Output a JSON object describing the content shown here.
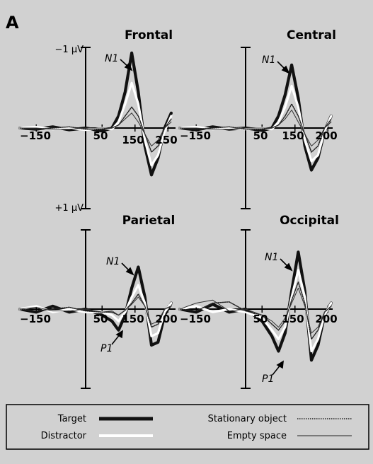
{
  "panel_letter": "A",
  "voltage_labels": {
    "top": "−1 μV",
    "bottom": "+1 μV"
  },
  "x_tick_labels": [
    "−150",
    "50",
    "150",
    "250"
  ],
  "x_tick_labels_alt": [
    "−150",
    "50",
    "150",
    "200"
  ],
  "annotations": {
    "n1": "N1",
    "p1": "P1"
  },
  "legend": {
    "target": "Target",
    "distractor": "Distractor",
    "stationary": "Stationary object",
    "empty": "Empty space"
  },
  "colors": {
    "background": "#d1d1d1",
    "target": "#111111",
    "distractor": "#ffffff"
  },
  "chart_data": [
    {
      "type": "line",
      "title": "Frontal",
      "xlabel": "",
      "ylabel": "",
      "x_ticks": [
        "−150",
        "50",
        "150",
        "250"
      ],
      "series": [
        {
          "name": "Target",
          "x": [
            -200,
            -150,
            -100,
            -50,
            0,
            50,
            80,
            100,
            120,
            140,
            160,
            180,
            200,
            220,
            240,
            260
          ],
          "values": [
            0,
            0.02,
            -0.02,
            0.03,
            0,
            0.05,
            0,
            -0.2,
            -0.6,
            -1.25,
            -0.6,
            0.3,
            0.78,
            0.5,
            0,
            -0.25
          ]
        },
        {
          "name": "Distractor",
          "x": [
            -200,
            -150,
            -100,
            -50,
            0,
            50,
            80,
            100,
            120,
            140,
            160,
            180,
            200,
            220,
            240,
            260
          ],
          "values": [
            0,
            -0.02,
            0.02,
            0,
            0.03,
            0,
            0.02,
            -0.1,
            -0.4,
            -0.75,
            -0.4,
            0.2,
            0.62,
            0.45,
            0.05,
            -0.2
          ]
        },
        {
          "name": "Stationary object",
          "x": [
            -200,
            -150,
            -100,
            -50,
            0,
            50,
            80,
            100,
            120,
            140,
            160,
            180,
            200,
            220,
            240,
            260
          ],
          "values": [
            0,
            0.02,
            0,
            -0.02,
            0.02,
            0.02,
            0,
            -0.05,
            -0.2,
            -0.35,
            -0.2,
            0.1,
            0.4,
            0.3,
            0,
            -0.15
          ]
        },
        {
          "name": "Empty space",
          "x": [
            -200,
            -150,
            -100,
            -50,
            0,
            50,
            80,
            100,
            120,
            140,
            160,
            180,
            200,
            220,
            240,
            260
          ],
          "values": [
            0,
            0,
            0.02,
            0.02,
            0,
            0,
            0,
            -0.05,
            -0.15,
            -0.25,
            -0.1,
            0.1,
            0.3,
            0.2,
            0,
            -0.1
          ]
        }
      ]
    },
    {
      "type": "line",
      "title": "Central",
      "xlabel": "",
      "ylabel": "",
      "x_ticks": [
        "−150",
        "50",
        "150",
        "200"
      ],
      "series": [
        {
          "name": "Target",
          "x": [
            -200,
            -150,
            -100,
            -50,
            0,
            50,
            80,
            100,
            120,
            140,
            160,
            180,
            200,
            220,
            240,
            260
          ],
          "values": [
            0,
            0.03,
            -0.02,
            0.02,
            0,
            0.04,
            0,
            -0.2,
            -0.55,
            -1.05,
            -0.5,
            0.3,
            0.7,
            0.5,
            0.05,
            -0.2
          ]
        },
        {
          "name": "Distractor",
          "x": [
            -200,
            -150,
            -100,
            -50,
            0,
            50,
            80,
            100,
            120,
            140,
            160,
            180,
            200,
            220,
            240,
            260
          ],
          "values": [
            0,
            -0.02,
            0.02,
            0,
            0.02,
            0,
            0.02,
            -0.1,
            -0.35,
            -0.7,
            -0.35,
            0.2,
            0.55,
            0.45,
            0.05,
            -0.2
          ]
        },
        {
          "name": "Stationary object",
          "x": [
            -200,
            -150,
            -100,
            -50,
            0,
            50,
            80,
            100,
            120,
            140,
            160,
            180,
            200,
            220,
            240,
            260
          ],
          "values": [
            0,
            0.02,
            0,
            -0.02,
            0.02,
            0.02,
            0,
            -0.05,
            -0.2,
            -0.4,
            -0.2,
            0.1,
            0.4,
            0.3,
            0,
            -0.15
          ]
        },
        {
          "name": "Empty space",
          "x": [
            -200,
            -150,
            -100,
            -50,
            0,
            50,
            80,
            100,
            120,
            140,
            160,
            180,
            200,
            220,
            240,
            260
          ],
          "values": [
            0,
            0,
            0.02,
            0.02,
            0,
            0,
            0,
            -0.05,
            -0.15,
            -0.3,
            -0.1,
            0.1,
            0.3,
            0.2,
            0,
            -0.1
          ]
        }
      ]
    },
    {
      "type": "line",
      "title": "Parietal",
      "xlabel": "",
      "ylabel": "",
      "x_ticks": [
        "−150",
        "50",
        "150",
        "200"
      ],
      "series": [
        {
          "name": "Target",
          "x": [
            -200,
            -150,
            -100,
            -50,
            0,
            50,
            80,
            100,
            120,
            140,
            160,
            180,
            200,
            220,
            240,
            260
          ],
          "values": [
            0,
            0.05,
            -0.05,
            0.05,
            0,
            0.1,
            0.2,
            0.35,
            0.1,
            -0.35,
            -0.7,
            -0.2,
            0.6,
            0.55,
            0.1,
            -0.1
          ]
        },
        {
          "name": "Distractor",
          "x": [
            -200,
            -150,
            -100,
            -50,
            0,
            50,
            80,
            100,
            120,
            140,
            160,
            180,
            200,
            220,
            240,
            260
          ],
          "values": [
            0,
            -0.05,
            0.05,
            0,
            0.05,
            0.05,
            0.1,
            0.2,
            0.05,
            -0.2,
            -0.4,
            -0.1,
            0.45,
            0.4,
            0.05,
            -0.1
          ]
        },
        {
          "name": "Stationary object",
          "x": [
            -200,
            -150,
            -100,
            -50,
            0,
            50,
            80,
            100,
            120,
            140,
            160,
            180,
            200,
            220,
            240,
            260
          ],
          "values": [
            0,
            0.03,
            0,
            -0.03,
            0.03,
            0.05,
            0.05,
            0.1,
            0.02,
            -0.1,
            -0.25,
            -0.05,
            0.3,
            0.25,
            0,
            -0.05
          ]
        },
        {
          "name": "Empty space",
          "x": [
            -200,
            -150,
            -100,
            -50,
            0,
            50,
            80,
            100,
            120,
            140,
            160,
            180,
            200,
            220,
            240,
            260
          ],
          "values": [
            0,
            -0.03,
            0.03,
            0.03,
            0,
            0.05,
            0.03,
            0.1,
            0.02,
            -0.08,
            -0.2,
            -0.05,
            0.25,
            0.2,
            0,
            -0.05
          ]
        }
      ]
    },
    {
      "type": "line",
      "title": "Occipital",
      "xlabel": "",
      "ylabel": "",
      "x_ticks": [
        "−150",
        "50",
        "150",
        "200"
      ],
      "series": [
        {
          "name": "Target",
          "x": [
            -200,
            -150,
            -100,
            -50,
            0,
            50,
            80,
            100,
            120,
            140,
            160,
            180,
            200,
            220,
            240,
            260
          ],
          "values": [
            0,
            0.05,
            -0.08,
            0.05,
            0,
            0.2,
            0.45,
            0.7,
            0.4,
            -0.3,
            -0.95,
            -0.3,
            0.85,
            0.6,
            0.1,
            -0.1
          ]
        },
        {
          "name": "Distractor",
          "x": [
            -200,
            -150,
            -100,
            -50,
            0,
            50,
            80,
            100,
            120,
            140,
            160,
            180,
            200,
            220,
            240,
            260
          ],
          "values": [
            0,
            -0.05,
            0.05,
            0,
            0.05,
            0.15,
            0.35,
            0.5,
            0.3,
            -0.2,
            -0.65,
            -0.2,
            0.7,
            0.5,
            0.1,
            -0.1
          ]
        },
        {
          "name": "Stationary object",
          "x": [
            -200,
            -150,
            -100,
            -50,
            0,
            50,
            80,
            100,
            120,
            140,
            160,
            180,
            200,
            220,
            240,
            260
          ],
          "values": [
            0,
            0.03,
            -0.1,
            -0.12,
            0.03,
            0.1,
            0.25,
            0.35,
            0.2,
            -0.15,
            -0.45,
            -0.1,
            0.5,
            0.35,
            0.05,
            -0.05
          ]
        },
        {
          "name": "Empty space",
          "x": [
            -200,
            -150,
            -100,
            -50,
            0,
            50,
            80,
            100,
            120,
            140,
            160,
            180,
            200,
            220,
            240,
            260
          ],
          "values": [
            0,
            -0.1,
            -0.15,
            0.03,
            0,
            0.1,
            0.2,
            0.3,
            0.15,
            -0.1,
            -0.35,
            -0.05,
            0.4,
            0.3,
            0.05,
            -0.05
          ]
        }
      ]
    }
  ]
}
